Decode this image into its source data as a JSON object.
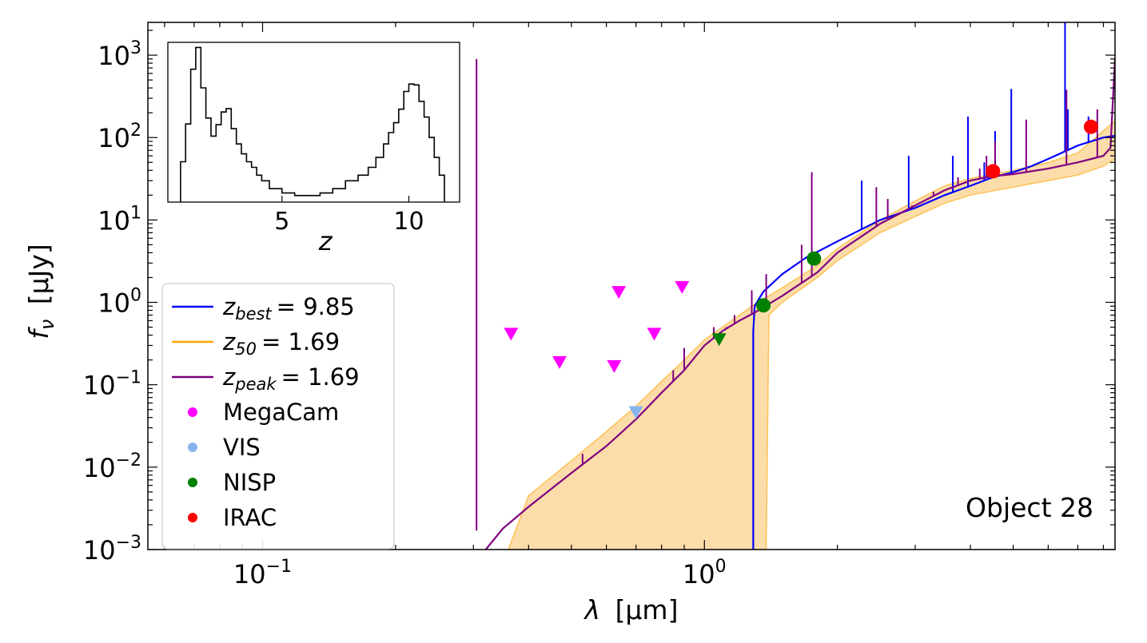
{
  "chart_data": {
    "type": "line",
    "x_scale": "log",
    "y_scale": "log",
    "xlim": [
      0.055,
      8.5
    ],
    "ylim": [
      0.001,
      2500
    ],
    "xlabel_symbol": "λ",
    "xlabel_unit": "[μm]",
    "ylabel_symbol": "f",
    "ylabel_sub": "ν",
    "ylabel_unit": "[μJy]",
    "x_ticks": [
      {
        "value": 0.1,
        "base": "10",
        "exp": "−1"
      },
      {
        "value": 1,
        "base": "10",
        "exp": "0"
      }
    ],
    "y_ticks": [
      {
        "value": 0.001,
        "base": "10",
        "exp": "−3"
      },
      {
        "value": 0.01,
        "base": "10",
        "exp": "−2"
      },
      {
        "value": 0.1,
        "base": "10",
        "exp": "−1"
      },
      {
        "value": 1,
        "base": "10",
        "exp": "0"
      },
      {
        "value": 10,
        "base": "10",
        "exp": "1"
      },
      {
        "value": 100,
        "base": "10",
        "exp": "2"
      },
      {
        "value": 1000,
        "base": "10",
        "exp": "3"
      }
    ],
    "annotation": "Object 28",
    "series": [
      {
        "name": "z_best = 9.85",
        "color": "#0000ff",
        "points": [
          [
            1.29,
            0.001
          ],
          [
            1.29,
            0.45
          ],
          [
            1.3,
            0.9
          ],
          [
            1.36,
            1.35
          ],
          [
            1.5,
            2.2
          ],
          [
            1.7,
            3.5
          ],
          [
            2.0,
            5.5
          ],
          [
            2.5,
            10
          ],
          [
            3.0,
            14
          ],
          [
            3.5,
            20
          ],
          [
            4.0,
            26
          ],
          [
            4.5,
            33
          ],
          [
            5.0,
            38
          ],
          [
            5.5,
            45
          ],
          [
            6.0,
            55
          ],
          [
            7.0,
            80
          ],
          [
            8.0,
            100
          ],
          [
            8.5,
            105
          ]
        ],
        "lines": [
          [
            2.27,
            30
          ],
          [
            2.9,
            60
          ],
          [
            3.65,
            60
          ],
          [
            3.95,
            180
          ],
          [
            4.3,
            50
          ],
          [
            4.55,
            120
          ],
          [
            4.95,
            390
          ],
          [
            6.55,
            2500
          ],
          [
            6.65,
            220
          ],
          [
            7.4,
            180
          ]
        ]
      },
      {
        "name": "z_peak = 1.69",
        "color": "#800080",
        "points": [
          [
            0.32,
            0.001
          ],
          [
            0.35,
            0.0018
          ],
          [
            0.4,
            0.0033
          ],
          [
            0.5,
            0.0085
          ],
          [
            0.6,
            0.018
          ],
          [
            0.7,
            0.038
          ],
          [
            0.8,
            0.08
          ],
          [
            0.9,
            0.15
          ],
          [
            1.0,
            0.3
          ],
          [
            1.1,
            0.45
          ],
          [
            1.2,
            0.6
          ],
          [
            1.3,
            0.75
          ],
          [
            1.5,
            1.2
          ],
          [
            1.8,
            2.3
          ],
          [
            2.0,
            4.0
          ],
          [
            2.5,
            9
          ],
          [
            3.0,
            15
          ],
          [
            3.5,
            23
          ],
          [
            4.0,
            30
          ],
          [
            4.5,
            34
          ],
          [
            5.0,
            36
          ],
          [
            6.0,
            42
          ],
          [
            7.0,
            50
          ],
          [
            8.0,
            60
          ],
          [
            8.3,
            75
          ],
          [
            8.5,
            900
          ]
        ],
        "lines": [
          [
            0.305,
            0.0017
          ],
          [
            0.53,
            0.0145
          ],
          [
            0.85,
            0.15
          ],
          [
            0.9,
            0.28
          ],
          [
            1.05,
            0.5
          ],
          [
            1.12,
            0.5
          ],
          [
            1.17,
            0.7
          ],
          [
            1.28,
            1.4
          ],
          [
            1.38,
            2.2
          ],
          [
            1.75,
            38
          ],
          [
            1.66,
            5.0
          ],
          [
            2.45,
            25
          ],
          [
            2.6,
            18
          ],
          [
            2.95,
            15
          ],
          [
            3.3,
            22
          ],
          [
            3.75,
            33
          ],
          [
            4.2,
            42
          ],
          [
            4.35,
            60
          ],
          [
            4.55,
            90
          ],
          [
            5.35,
            165
          ],
          [
            6.6,
            380
          ],
          [
            7.75,
            220
          ]
        ]
      },
      {
        "name": "z_50 = 1.69",
        "color": "#ffa500",
        "band_upper": [
          [
            0.36,
            0.001
          ],
          [
            0.4,
            0.0045
          ],
          [
            0.5,
            0.012
          ],
          [
            0.6,
            0.027
          ],
          [
            0.7,
            0.055
          ],
          [
            0.8,
            0.11
          ],
          [
            0.9,
            0.2
          ],
          [
            1.0,
            0.35
          ],
          [
            1.2,
            0.7
          ],
          [
            1.3,
            0.95
          ],
          [
            1.5,
            1.5
          ],
          [
            1.8,
            2.8
          ],
          [
            2.0,
            4.5
          ],
          [
            2.5,
            10
          ],
          [
            3.0,
            17
          ],
          [
            3.5,
            26
          ],
          [
            4.0,
            32
          ],
          [
            5.0,
            40
          ],
          [
            6.0,
            50
          ],
          [
            7.0,
            65
          ],
          [
            8.0,
            120
          ],
          [
            8.5,
            160
          ]
        ],
        "band_lower": [
          [
            8.5,
            55
          ],
          [
            8.0,
            45
          ],
          [
            7.0,
            35
          ],
          [
            6.0,
            30
          ],
          [
            5.0,
            25
          ],
          [
            4.0,
            20
          ],
          [
            3.5,
            16
          ],
          [
            3.0,
            11
          ],
          [
            2.5,
            7
          ],
          [
            2.0,
            3.2
          ],
          [
            1.8,
            2.0
          ],
          [
            1.5,
            1.0
          ],
          [
            1.4,
            0.7
          ],
          [
            1.38,
            0.001
          ]
        ]
      }
    ],
    "photometry": [
      {
        "instrument": "MegaCam",
        "color": "#ff00ff",
        "marker": "triangle-down",
        "points": [
          [
            0.365,
            0.42
          ],
          [
            0.47,
            0.19
          ],
          [
            0.625,
            0.17
          ],
          [
            0.64,
            1.35
          ],
          [
            0.77,
            0.42
          ],
          [
            0.89,
            1.55
          ]
        ]
      },
      {
        "instrument": "VIS",
        "color": "#88b4ee",
        "marker": "triangle-down",
        "points": [
          [
            0.7,
            0.047
          ]
        ]
      },
      {
        "instrument": "NISP",
        "color": "#008000",
        "marker": "triangle-down",
        "points": [
          [
            1.08,
            0.36
          ]
        ]
      },
      {
        "instrument": "NISP",
        "color": "#008000",
        "marker": "circle",
        "points": [
          [
            1.36,
            0.92
          ],
          [
            1.77,
            3.4
          ]
        ]
      },
      {
        "instrument": "IRAC",
        "color": "#ff0000",
        "marker": "circle",
        "points": [
          [
            4.5,
            39
          ],
          [
            7.5,
            135
          ]
        ]
      }
    ],
    "inset": {
      "type": "histogram",
      "xlabel": "z",
      "x_ticks": [
        5,
        10
      ],
      "xlim": [
        0.5,
        12.0
      ],
      "bins_z": [
        1.0,
        1.2,
        1.4,
        1.6,
        1.8,
        2.0,
        2.2,
        2.4,
        2.6,
        2.8,
        3.0,
        3.2,
        3.4,
        3.6,
        3.8,
        4.0,
        4.2,
        4.5,
        5.0,
        5.5,
        6.0,
        6.5,
        7.0,
        7.5,
        8.0,
        8.4,
        8.7,
        9.0,
        9.2,
        9.4,
        9.6,
        9.8,
        10.0,
        10.2,
        10.4,
        10.6,
        10.8,
        11.0,
        11.2,
        11.4
      ],
      "counts": [
        4,
        28,
        470,
        1450,
        180,
        38,
        15,
        27,
        52,
        62,
        22,
        10,
        6,
        4,
        3,
        2,
        1.5,
        1,
        0.8,
        0.7,
        0.7,
        0.8,
        1,
        1.5,
        2,
        3,
        5,
        10,
        18,
        30,
        60,
        150,
        220,
        210,
        90,
        40,
        14,
        5,
        2
      ]
    },
    "legend": [
      {
        "label_base": "z",
        "label_sub": "best",
        "label_value": "= 9.85",
        "color": "#0000ff",
        "kind": "line"
      },
      {
        "label_base": "z",
        "label_sub": "50",
        "label_value": "= 1.69",
        "color": "#ffa500",
        "kind": "line"
      },
      {
        "label_base": "z",
        "label_sub": "peak",
        "label_value": "= 1.69",
        "color": "#800080",
        "kind": "line"
      },
      {
        "label": "MegaCam",
        "color": "#ff00ff",
        "kind": "dot"
      },
      {
        "label": "VIS",
        "color": "#88b4ee",
        "kind": "dot"
      },
      {
        "label": "NISP",
        "color": "#008000",
        "kind": "dot"
      },
      {
        "label": "IRAC",
        "color": "#ff0000",
        "kind": "dot"
      }
    ]
  }
}
